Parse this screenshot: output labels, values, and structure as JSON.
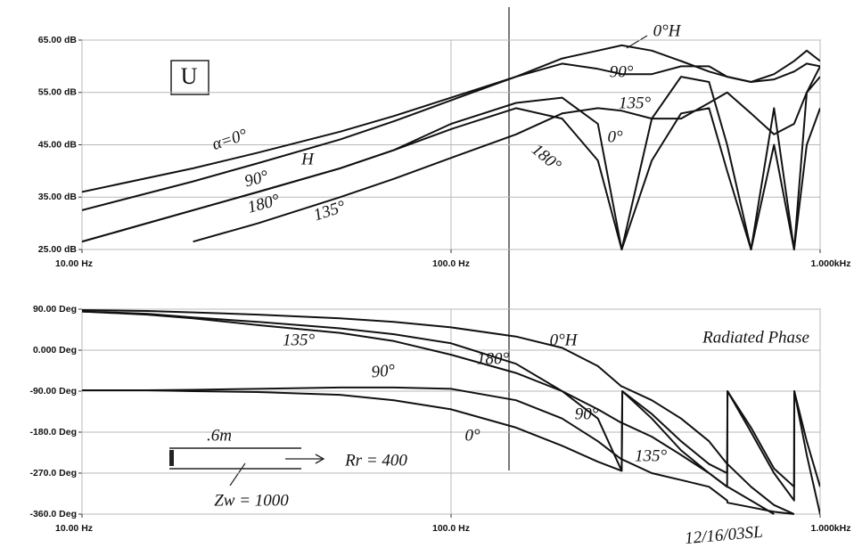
{
  "chart_data": [
    {
      "type": "line",
      "xscale": "log",
      "grid": true,
      "x": [
        10,
        20,
        30,
        50,
        70,
        100,
        150,
        200,
        250,
        290,
        350,
        420,
        500,
        560,
        650,
        750,
        850,
        920,
        1000
      ],
      "xlim": [
        10,
        1000
      ],
      "xticks": [
        {
          "value": 10,
          "label": "10.00 Hz"
        },
        {
          "value": 100,
          "label": "100.0 Hz"
        },
        {
          "value": 1000,
          "label": "1.000kHz"
        }
      ],
      "ylim": [
        25,
        65
      ],
      "yticks": [
        {
          "value": 25,
          "label": "25.00 dB"
        },
        {
          "value": 35,
          "label": "35.00 dB"
        },
        {
          "value": 45,
          "label": "45.00 dB"
        },
        {
          "value": 55,
          "label": "55.00 dB"
        },
        {
          "value": 65,
          "label": "65.00 dB"
        }
      ],
      "series": [
        {
          "color": "#111111",
          "values": [
            36,
            40.5,
            43.5,
            47.5,
            50.5,
            54,
            58,
            61.5,
            63,
            64,
            63,
            61,
            59,
            58,
            57,
            58.5,
            61,
            63,
            61
          ]
        },
        {
          "color": "#111111",
          "values": [
            32.5,
            38,
            41.5,
            46,
            49.5,
            53.5,
            58,
            60.5,
            59.5,
            58.5,
            58.5,
            60,
            60,
            58,
            57,
            57.5,
            59,
            60.5,
            60
          ]
        },
        {
          "color": "#111111",
          "values": [
            null,
            26.5,
            30,
            35,
            38.5,
            42.5,
            47,
            51,
            52,
            51.5,
            50,
            50,
            53,
            55,
            51,
            47,
            49,
            55,
            58
          ]
        },
        {
          "color": "#111111",
          "values": [
            26.5,
            32.5,
            36,
            40.5,
            44,
            48,
            52,
            50,
            42,
            25,
            42,
            51,
            52,
            40,
            25,
            45,
            25,
            45,
            52
          ]
        },
        {
          "color": "#111111",
          "values": [
            26.5,
            32.5,
            36,
            40.5,
            44,
            49,
            53,
            54,
            49,
            25,
            50,
            58,
            57,
            45,
            25,
            52,
            25,
            55,
            60
          ]
        }
      ],
      "annotations": [
        "U",
        "α=0°",
        "90°",
        "180°",
        "135°",
        "H",
        "0°H",
        "90°",
        "135°",
        "0°",
        "180°"
      ]
    },
    {
      "type": "line",
      "xscale": "log",
      "grid": true,
      "x": [
        10,
        15,
        20,
        30,
        50,
        70,
        100,
        150,
        200,
        250,
        290,
        291,
        350,
        420,
        500,
        560,
        561,
        650,
        750,
        850,
        851,
        920,
        1000
      ],
      "xlim": [
        10,
        1000
      ],
      "xticks": [
        {
          "value": 10,
          "label": "10.00 Hz"
        },
        {
          "value": 100,
          "label": "100.0 Hz"
        },
        {
          "value": 1000,
          "label": "1.000kHz"
        }
      ],
      "ylim": [
        -360,
        90
      ],
      "yticks": [
        {
          "value": -360,
          "label": "-360.0 Deg"
        },
        {
          "value": -270,
          "label": "-270.0 Deg"
        },
        {
          "value": -180,
          "label": "-180.0 Deg"
        },
        {
          "value": -90,
          "label": "-90.00 Deg"
        },
        {
          "value": 0,
          "label": "0.000 Deg"
        },
        {
          "value": 90,
          "label": "90.00 Deg"
        }
      ],
      "series": [
        {
          "color": "#111111",
          "values": [
            88,
            86,
            83,
            78,
            70,
            62,
            50,
            30,
            5,
            -35,
            -80,
            -80,
            -110,
            -150,
            -200,
            -250,
            -250,
            -300,
            -340,
            -360,
            null,
            null,
            null
          ]
        },
        {
          "color": "#111111",
          "values": [
            85,
            78,
            70,
            55,
            38,
            20,
            -10,
            -50,
            -90,
            -130,
            -160,
            -160,
            -190,
            -230,
            -270,
            -300,
            -300,
            -330,
            -360,
            null,
            null,
            null,
            null
          ]
        },
        {
          "color": "#111111",
          "values": [
            85,
            80,
            72,
            62,
            48,
            35,
            15,
            -30,
            -90,
            -150,
            -265,
            -90,
            -140,
            -200,
            -250,
            -270,
            -90,
            -170,
            -260,
            -300,
            -90,
            -200,
            -300
          ]
        },
        {
          "color": "#111111",
          "values": [
            -88,
            -88,
            -87,
            -85,
            -82,
            -82,
            -85,
            -110,
            -150,
            -200,
            -240,
            -240,
            -270,
            -285,
            -300,
            -330,
            -335,
            -345,
            -355,
            -360,
            null,
            null,
            null
          ]
        },
        {
          "color": "#111111",
          "values": [
            -88,
            -88,
            -90,
            -92,
            -98,
            -110,
            -130,
            -170,
            -210,
            -245,
            -265,
            -90,
            -150,
            -220,
            -270,
            -300,
            -90,
            -180,
            -270,
            -330,
            -90,
            -230,
            -360
          ]
        }
      ],
      "annotations": [
        "135°",
        "0°H",
        "Radiated Phase",
        "180°",
        "90°",
        "90°",
        "0°",
        "135°",
        ".6m",
        "Rr = 400",
        "Zw = 1000",
        "12/16/03SL"
      ]
    }
  ]
}
